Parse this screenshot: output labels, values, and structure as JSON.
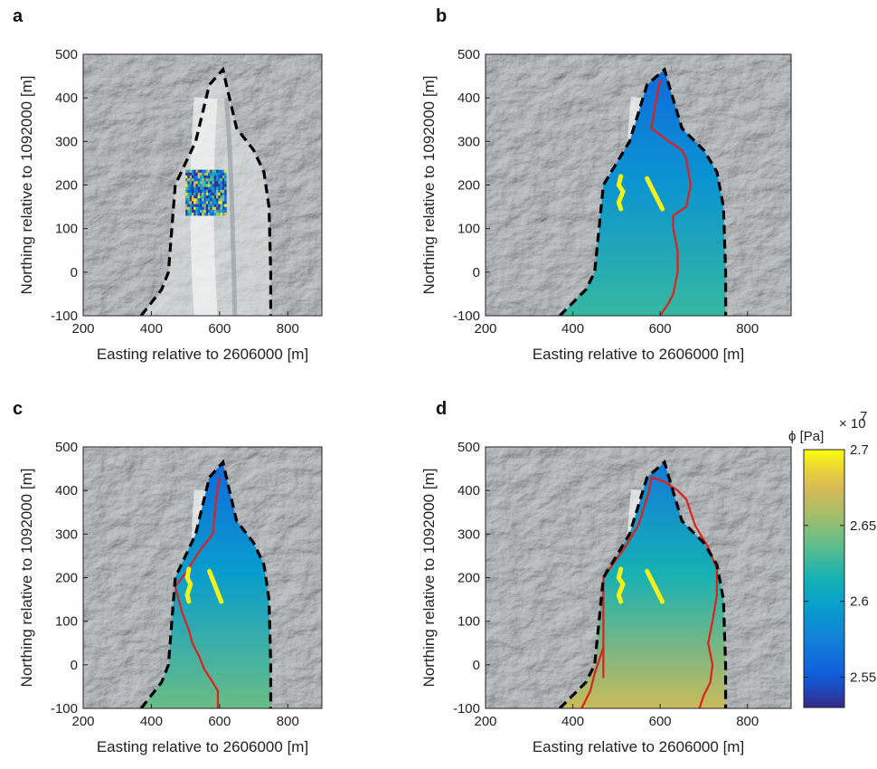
{
  "chart_data": [
    {
      "panel": "a",
      "type": "heatmap",
      "xlabel": "Easting relative to 2606000 [m]",
      "ylabel": "Northing relative to 1092000 [m]",
      "xlim": [
        200,
        900
      ],
      "ylim": [
        -100,
        500
      ],
      "xticks": [
        "200",
        "400",
        "600",
        "800"
      ],
      "yticks": [
        "-100",
        "0",
        "100",
        "200",
        "300",
        "400",
        "500"
      ],
      "boundary": [
        [
          370,
          -100
        ],
        [
          430,
          -40
        ],
        [
          450,
          0
        ],
        [
          460,
          100
        ],
        [
          470,
          200
        ],
        [
          530,
          300
        ],
        [
          570,
          430
        ],
        [
          610,
          465
        ],
        [
          620,
          430
        ],
        [
          650,
          330
        ],
        [
          700,
          280
        ],
        [
          730,
          230
        ],
        [
          745,
          150
        ],
        [
          750,
          0
        ],
        [
          750,
          -100
        ]
      ],
      "inset_patch": {
        "x": [
          500,
          620
        ],
        "y": [
          130,
          235
        ]
      }
    },
    {
      "panel": "b",
      "type": "heatmap",
      "xlabel": "Easting relative to 2606000 [m]",
      "ylabel": "Northing relative to 1092000 [m]",
      "xlim": [
        200,
        900
      ],
      "ylim": [
        -100,
        500
      ],
      "xticks": [
        "200",
        "400",
        "600",
        "800"
      ],
      "yticks": [
        "-100",
        "0",
        "100",
        "200",
        "300",
        "400",
        "500"
      ],
      "boundary": [
        [
          370,
          -100
        ],
        [
          430,
          -40
        ],
        [
          450,
          0
        ],
        [
          460,
          100
        ],
        [
          470,
          200
        ],
        [
          530,
          300
        ],
        [
          570,
          430
        ],
        [
          610,
          465
        ],
        [
          620,
          430
        ],
        [
          650,
          330
        ],
        [
          700,
          280
        ],
        [
          730,
          230
        ],
        [
          745,
          150
        ],
        [
          750,
          0
        ],
        [
          750,
          -100
        ]
      ],
      "red_contour": [
        [
          600,
          440
        ],
        [
          590,
          390
        ],
        [
          580,
          330
        ],
        [
          620,
          300
        ],
        [
          650,
          280
        ],
        [
          660,
          260
        ],
        [
          670,
          200
        ],
        [
          660,
          150
        ],
        [
          630,
          130
        ],
        [
          630,
          100
        ],
        [
          640,
          50
        ],
        [
          640,
          0
        ],
        [
          630,
          -50
        ],
        [
          620,
          -70
        ],
        [
          600,
          -100
        ]
      ],
      "yellow_lines": [
        [
          [
            510,
            220
          ],
          [
            505,
            200
          ],
          [
            515,
            185
          ],
          [
            505,
            160
          ],
          [
            510,
            145
          ]
        ],
        [
          [
            570,
            215
          ],
          [
            605,
            145
          ]
        ]
      ],
      "field": {
        "top": 2.56,
        "bottom": 2.625
      }
    },
    {
      "panel": "c",
      "type": "heatmap",
      "xlabel": "Easting relative to 2606000 [m]",
      "ylabel": "Northing relative to 1092000 [m]",
      "xlim": [
        200,
        900
      ],
      "ylim": [
        -100,
        500
      ],
      "xticks": [
        "200",
        "400",
        "600",
        "800"
      ],
      "yticks": [
        "-100",
        "0",
        "100",
        "200",
        "300",
        "400",
        "500"
      ],
      "boundary": [
        [
          370,
          -100
        ],
        [
          430,
          -40
        ],
        [
          450,
          0
        ],
        [
          460,
          100
        ],
        [
          470,
          200
        ],
        [
          530,
          300
        ],
        [
          570,
          430
        ],
        [
          610,
          465
        ],
        [
          620,
          430
        ],
        [
          650,
          330
        ],
        [
          700,
          280
        ],
        [
          730,
          230
        ],
        [
          745,
          150
        ],
        [
          750,
          0
        ],
        [
          750,
          -100
        ]
      ],
      "red_contour": [
        [
          600,
          430
        ],
        [
          590,
          380
        ],
        [
          580,
          300
        ],
        [
          540,
          260
        ],
        [
          500,
          210
        ],
        [
          470,
          180
        ],
        [
          490,
          120
        ],
        [
          510,
          80
        ],
        [
          520,
          50
        ],
        [
          540,
          20
        ],
        [
          555,
          -10
        ],
        [
          580,
          -40
        ],
        [
          595,
          -60
        ],
        [
          595,
          -100
        ]
      ],
      "yellow_lines": [
        [
          [
            510,
            220
          ],
          [
            505,
            200
          ],
          [
            515,
            185
          ],
          [
            505,
            160
          ],
          [
            510,
            145
          ]
        ],
        [
          [
            570,
            215
          ],
          [
            605,
            145
          ]
        ]
      ],
      "field": {
        "top": 2.56,
        "bottom": 2.64
      }
    },
    {
      "panel": "d",
      "type": "heatmap",
      "xlabel": "Easting relative to 2606000 [m]",
      "ylabel": "Northing relative to 1092000 [m]",
      "xlim": [
        200,
        900
      ],
      "ylim": [
        -100,
        500
      ],
      "xticks": [
        "200",
        "400",
        "600",
        "800"
      ],
      "yticks": [
        "-100",
        "0",
        "100",
        "200",
        "300",
        "400",
        "500"
      ],
      "boundary": [
        [
          370,
          -100
        ],
        [
          430,
          -40
        ],
        [
          450,
          0
        ],
        [
          460,
          100
        ],
        [
          470,
          200
        ],
        [
          530,
          300
        ],
        [
          570,
          430
        ],
        [
          610,
          465
        ],
        [
          620,
          430
        ],
        [
          650,
          330
        ],
        [
          700,
          280
        ],
        [
          730,
          230
        ],
        [
          745,
          150
        ],
        [
          750,
          0
        ],
        [
          750,
          -100
        ]
      ],
      "red_contour": [
        [
          420,
          -100
        ],
        [
          440,
          -60
        ],
        [
          450,
          -20
        ],
        [
          460,
          10
        ],
        [
          470,
          40
        ],
        [
          470,
          90
        ],
        [
          470,
          200
        ],
        [
          520,
          270
        ],
        [
          550,
          320
        ],
        [
          575,
          400
        ],
        [
          580,
          430
        ],
        [
          610,
          420
        ],
        [
          640,
          400
        ],
        [
          660,
          380
        ],
        [
          680,
          320
        ],
        [
          710,
          270
        ],
        [
          730,
          220
        ],
        [
          730,
          160
        ],
        [
          720,
          100
        ],
        [
          710,
          50
        ],
        [
          720,
          0
        ],
        [
          715,
          -40
        ],
        [
          700,
          -70
        ],
        [
          690,
          -100
        ]
      ],
      "extra_contour": [
        [
          470,
          40
        ],
        [
          470,
          -30
        ]
      ],
      "yellow_lines": [
        [
          [
            510,
            220
          ],
          [
            505,
            200
          ],
          [
            515,
            185
          ],
          [
            505,
            160
          ],
          [
            510,
            145
          ]
        ],
        [
          [
            570,
            215
          ],
          [
            605,
            145
          ]
        ]
      ],
      "field": {
        "top": 2.57,
        "bottom": 2.67
      }
    }
  ],
  "colorbar": {
    "title": "ϕ [Pa]",
    "exponent_base": "× 10",
    "exponent": "7",
    "min": 2.53,
    "max": 2.7,
    "ticks": [
      {
        "value": 2.55,
        "label": "2.55"
      },
      {
        "value": 2.6,
        "label": "2.6"
      },
      {
        "value": 2.65,
        "label": "2.65"
      },
      {
        "value": 2.7,
        "label": "2.7"
      }
    ]
  }
}
